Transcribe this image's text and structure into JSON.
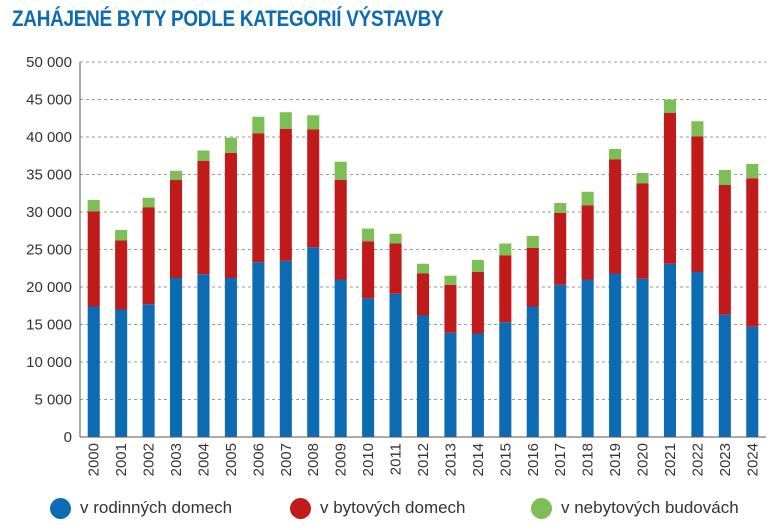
{
  "chart_data": {
    "type": "bar",
    "stacked": true,
    "title": "ZAHÁJENÉ BYTY PODLE KATEGORIÍ VÝSTAVBY",
    "xlabel": "",
    "ylabel": "",
    "ylim": [
      0,
      50000
    ],
    "yticks": [
      0,
      5000,
      10000,
      15000,
      20000,
      25000,
      30000,
      35000,
      40000,
      45000,
      50000
    ],
    "ytick_labels": [
      "0",
      "5 000",
      "10 000",
      "15 000",
      "20 000",
      "25 000",
      "30 000",
      "35 000",
      "40 000",
      "45 000",
      "50 000"
    ],
    "grid": "horizontal-dashed",
    "legend_position": "bottom",
    "categories": [
      "2000",
      "2001",
      "2002",
      "2003",
      "2004",
      "2005",
      "2006",
      "2007",
      "2008",
      "2009",
      "2010",
      "2011",
      "2012",
      "2013",
      "2014",
      "2015",
      "2016",
      "2017",
      "2018",
      "2019",
      "2020",
      "2021",
      "2022",
      "2023",
      "2024"
    ],
    "series": [
      {
        "name": "v rodinných domech",
        "color": "#0d6bb3",
        "values": [
          17400,
          17000,
          17700,
          21200,
          21700,
          21200,
          23300,
          23500,
          25300,
          21000,
          18500,
          19100,
          16200,
          13900,
          13800,
          15300,
          17400,
          20300,
          21000,
          21800,
          21100,
          23100,
          22000,
          16300,
          14700
        ]
      },
      {
        "name": "v bytových domech",
        "color": "#c01a1a",
        "values": [
          12700,
          9200,
          12900,
          13100,
          15100,
          16700,
          17200,
          17600,
          15700,
          13300,
          7600,
          6700,
          5600,
          6400,
          8200,
          8900,
          7800,
          9600,
          9900,
          15200,
          12700,
          20100,
          18100,
          17300,
          19800
        ]
      },
      {
        "name": "v nebytových budovách",
        "color": "#7cbf55",
        "values": [
          1500,
          1400,
          1300,
          1200,
          1400,
          2000,
          2200,
          2200,
          1900,
          2400,
          1700,
          1300,
          1300,
          1200,
          1600,
          1600,
          1600,
          1300,
          1800,
          1400,
          1400,
          1800,
          2000,
          2000,
          1900
        ]
      }
    ]
  }
}
